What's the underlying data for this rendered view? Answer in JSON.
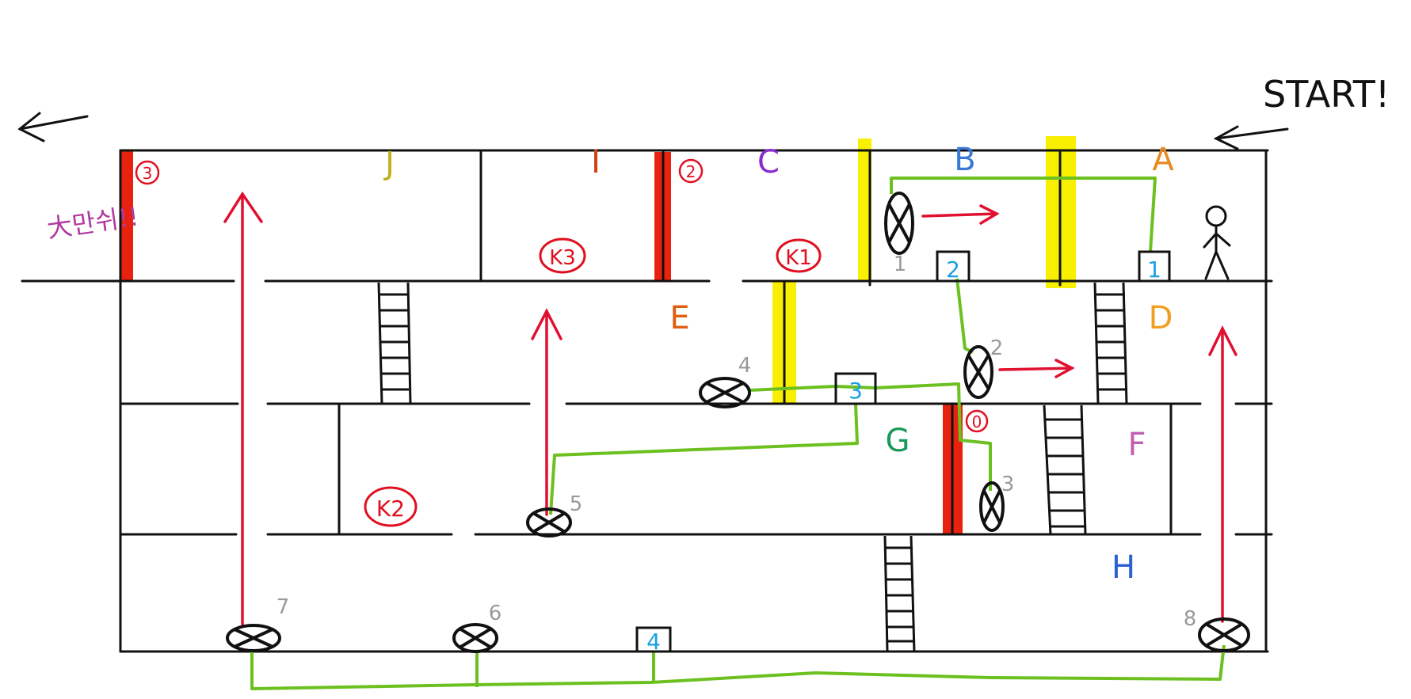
{
  "header": {
    "start_label": "START!",
    "exit_label": "大만쉬!!"
  },
  "rooms": {
    "A": "A",
    "B": "B",
    "C": "C",
    "D": "D",
    "E": "E",
    "F": "F",
    "G": "G",
    "H": "H",
    "I": "I",
    "J": "J"
  },
  "keys": {
    "k1": "K1",
    "k2": "K2",
    "k3": "K3"
  },
  "doors": {
    "d0": "0",
    "d2": "2",
    "d3": "3"
  },
  "switches": {
    "s1": "1",
    "s2": "2",
    "s3": "3",
    "s4": "4",
    "s5": "5",
    "s6": "6",
    "s7": "7",
    "s8": "8"
  },
  "boxes": {
    "b1": "1",
    "b2": "2",
    "b3": "3",
    "b4": "4"
  },
  "colors": {
    "wall": "#111111",
    "red_door": "#e8220f",
    "yellow_door": "#f8f000",
    "wire": "#6cc020",
    "arrow": "#e01030"
  }
}
